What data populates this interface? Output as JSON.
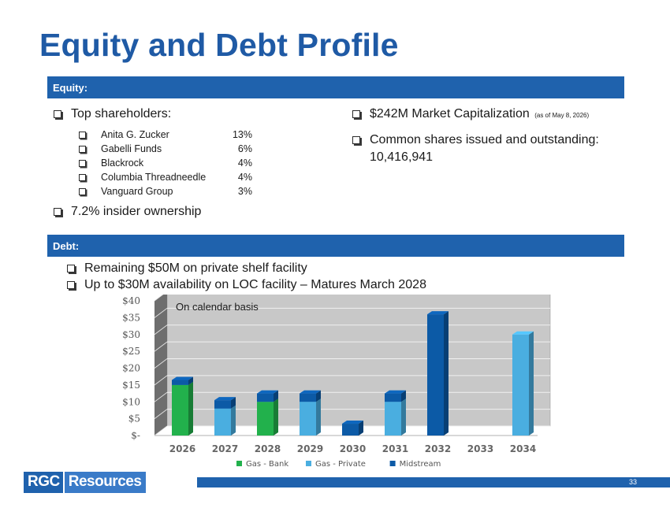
{
  "title": "Equity and Debt Profile",
  "equity": {
    "heading": "Equity:",
    "top_holders_label": "Top shareholders:",
    "holders": [
      {
        "name": "Anita G. Zucker",
        "pct": "13%"
      },
      {
        "name": "Gabelli Funds",
        "pct": "6%"
      },
      {
        "name": "Blackrock",
        "pct": "4%"
      },
      {
        "name": "Columbia Threadneedle",
        "pct": "4%"
      },
      {
        "name": "Vanguard Group",
        "pct": "3%"
      }
    ],
    "insider": "7.2% insider ownership",
    "market_cap": "$242M Market Capitalization",
    "market_cap_note": "(as of May 8, 2026)",
    "shares_label": "Common shares issued and outstanding:",
    "shares_value": "10,416,941"
  },
  "debt": {
    "heading": "Debt:",
    "bullets": [
      "Remaining $50M on private shelf facility",
      "Up to $30M availability on LOC facility – Matures March 2028"
    ]
  },
  "chart_data": {
    "type": "bar",
    "stacked": true,
    "annotation": "On calendar basis",
    "categories": [
      "2026",
      "2027",
      "2028",
      "2029",
      "2030",
      "2031",
      "2032",
      "2033",
      "2034"
    ],
    "series": [
      {
        "name": "Gas - Bank",
        "color": "#22b14c",
        "values": [
          15,
          0,
          10,
          0,
          0,
          0,
          0,
          0,
          0
        ]
      },
      {
        "name": "Gas - Private",
        "color": "#4aaee0",
        "values": [
          0,
          8,
          0,
          10,
          0,
          10,
          0,
          0,
          30
        ]
      },
      {
        "name": "Midstream",
        "color": "#0c5aa6",
        "values": [
          1.5,
          2.5,
          2.5,
          2.5,
          3.5,
          2.5,
          36,
          0,
          0
        ]
      }
    ],
    "ylim": [
      0,
      40
    ],
    "yticks": [
      0,
      5,
      10,
      15,
      20,
      25,
      30,
      35,
      40
    ],
    "ytick_labels": [
      "$-",
      "$5",
      "$10",
      "$15",
      "$20",
      "$25",
      "$30",
      "$35",
      "$40"
    ],
    "legend": "bottom",
    "grid": true
  },
  "footer": {
    "logo_left": "RGC",
    "logo_right": "Resources",
    "page_number": "33"
  }
}
